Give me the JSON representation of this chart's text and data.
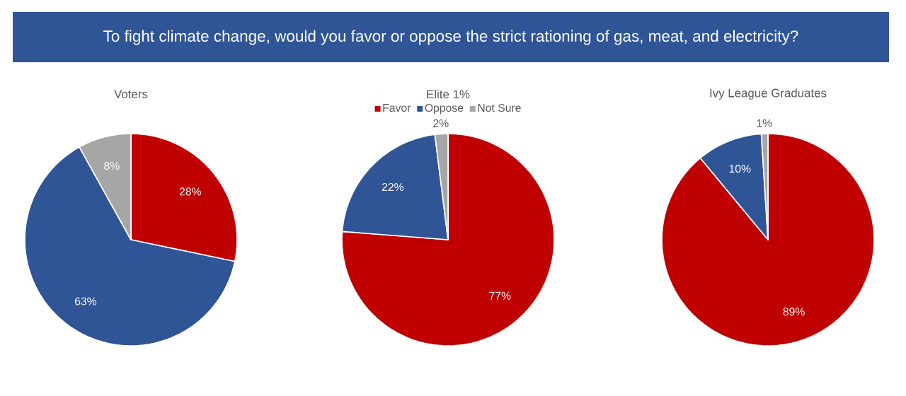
{
  "chart_data": [
    {
      "type": "other",
      "title": "To fight climate change, would you favor or oppose the strict rationing of gas, meat, and electricity?"
    },
    {
      "type": "pie",
      "title": "Voters",
      "categories": [
        null,
        null,
        null
      ],
      "values": [
        28,
        63,
        8
      ],
      "colors": [
        "#c00000",
        "#2f5597",
        "#a6a6a6"
      ],
      "value_labels": [
        "28%",
        "63%",
        "8%"
      ]
    },
    {
      "type": "pie",
      "title": "Elite 1%",
      "categories": [
        "Favor",
        "Oppose",
        "Not Sure"
      ],
      "values": [
        77,
        22,
        2
      ],
      "colors": [
        "#c00000",
        "#2f5597",
        "#a6a6a6"
      ],
      "value_labels": [
        "77%",
        "22%",
        "2%"
      ],
      "legend": "top"
    },
    {
      "type": "pie",
      "title": "Ivy League Graduates",
      "categories": [
        null,
        null,
        null
      ],
      "values": [
        89,
        10,
        1
      ],
      "colors": [
        "#c00000",
        "#2f5597",
        "#a6a6a6"
      ],
      "value_labels": [
        "89%",
        "10%",
        "1%"
      ]
    }
  ]
}
